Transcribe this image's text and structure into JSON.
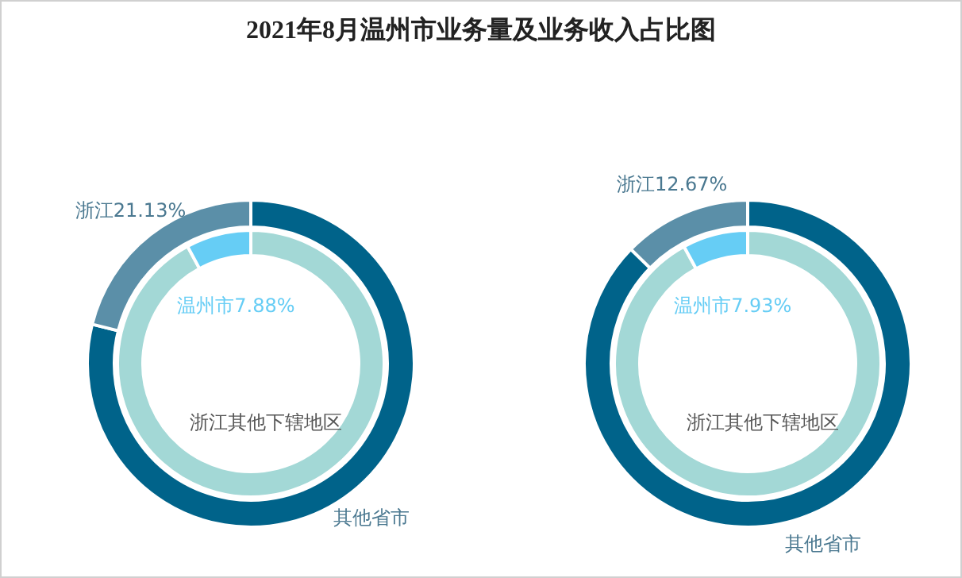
{
  "chart_data": [
    {
      "type": "donut",
      "title": "2021年8月温州市业务量及业务收入占比图",
      "categories": [
        "其他省市",
        "浙江"
      ],
      "values": [
        78.87,
        21.13
      ],
      "colors": [
        "#00638a",
        "#5b8fa8"
      ],
      "value_labels": [
        null,
        "21.13%"
      ]
    },
    {
      "type": "donut",
      "categories": [
        "浙江其他下辖地区",
        "温州市"
      ],
      "values": [
        92.12,
        7.88
      ],
      "colors": [
        "#a3d8d6",
        "#66cdf5"
      ],
      "value_labels": [
        null,
        "7.88%"
      ]
    },
    {
      "type": "donut",
      "categories": [
        "其他省市",
        "浙江"
      ],
      "values": [
        87.33,
        12.67
      ],
      "colors": [
        "#00638a",
        "#5b8fa8"
      ],
      "value_labels": [
        null,
        "12.67%"
      ]
    },
    {
      "type": "donut",
      "categories": [
        "浙江其他下辖地区",
        "温州市"
      ],
      "values": [
        92.07,
        7.93
      ],
      "colors": [
        "#a3d8d6",
        "#66cdf5"
      ],
      "value_labels": [
        null,
        "7.93%"
      ]
    }
  ]
}
